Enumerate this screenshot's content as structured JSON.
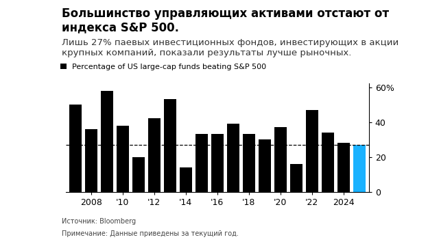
{
  "chart_data": {
    "type": "bar",
    "title": "Большинство управляющих активами отстают от индекса S&P 500.",
    "subtitle": "Лишь 27% паевых инвестиционных фондов, инвестирующих в акции крупных компаний, показали результаты лучше рыночных.",
    "categories": [
      null,
      "2008",
      null,
      "'10",
      null,
      "'12",
      null,
      "'14",
      null,
      "'16",
      null,
      "'18",
      null,
      "'20",
      null,
      "'22",
      null,
      "2024",
      null
    ],
    "series": [
      {
        "name": "Percentage of US large-cap funds beating S&P 500",
        "values": [
          50,
          36,
          58,
          38,
          20,
          42,
          53,
          14,
          33,
          33,
          39,
          33,
          30,
          37,
          16,
          47,
          34,
          28,
          27
        ],
        "colors": [
          "#000000",
          "#000000",
          "#000000",
          "#000000",
          "#000000",
          "#000000",
          "#000000",
          "#000000",
          "#000000",
          "#000000",
          "#000000",
          "#000000",
          "#000000",
          "#000000",
          "#000000",
          "#000000",
          "#000000",
          "#000000",
          "#1ab2ff"
        ]
      }
    ],
    "ylim": [
      0,
      62
    ],
    "yticks": [
      0,
      20,
      40,
      {
        "value": 60,
        "label": "60%"
      }
    ],
    "grid": false,
    "legend": "upper left",
    "source": "Источник: Bloomberg",
    "note": "Примечание: Данные приведены за текущий год."
  }
}
